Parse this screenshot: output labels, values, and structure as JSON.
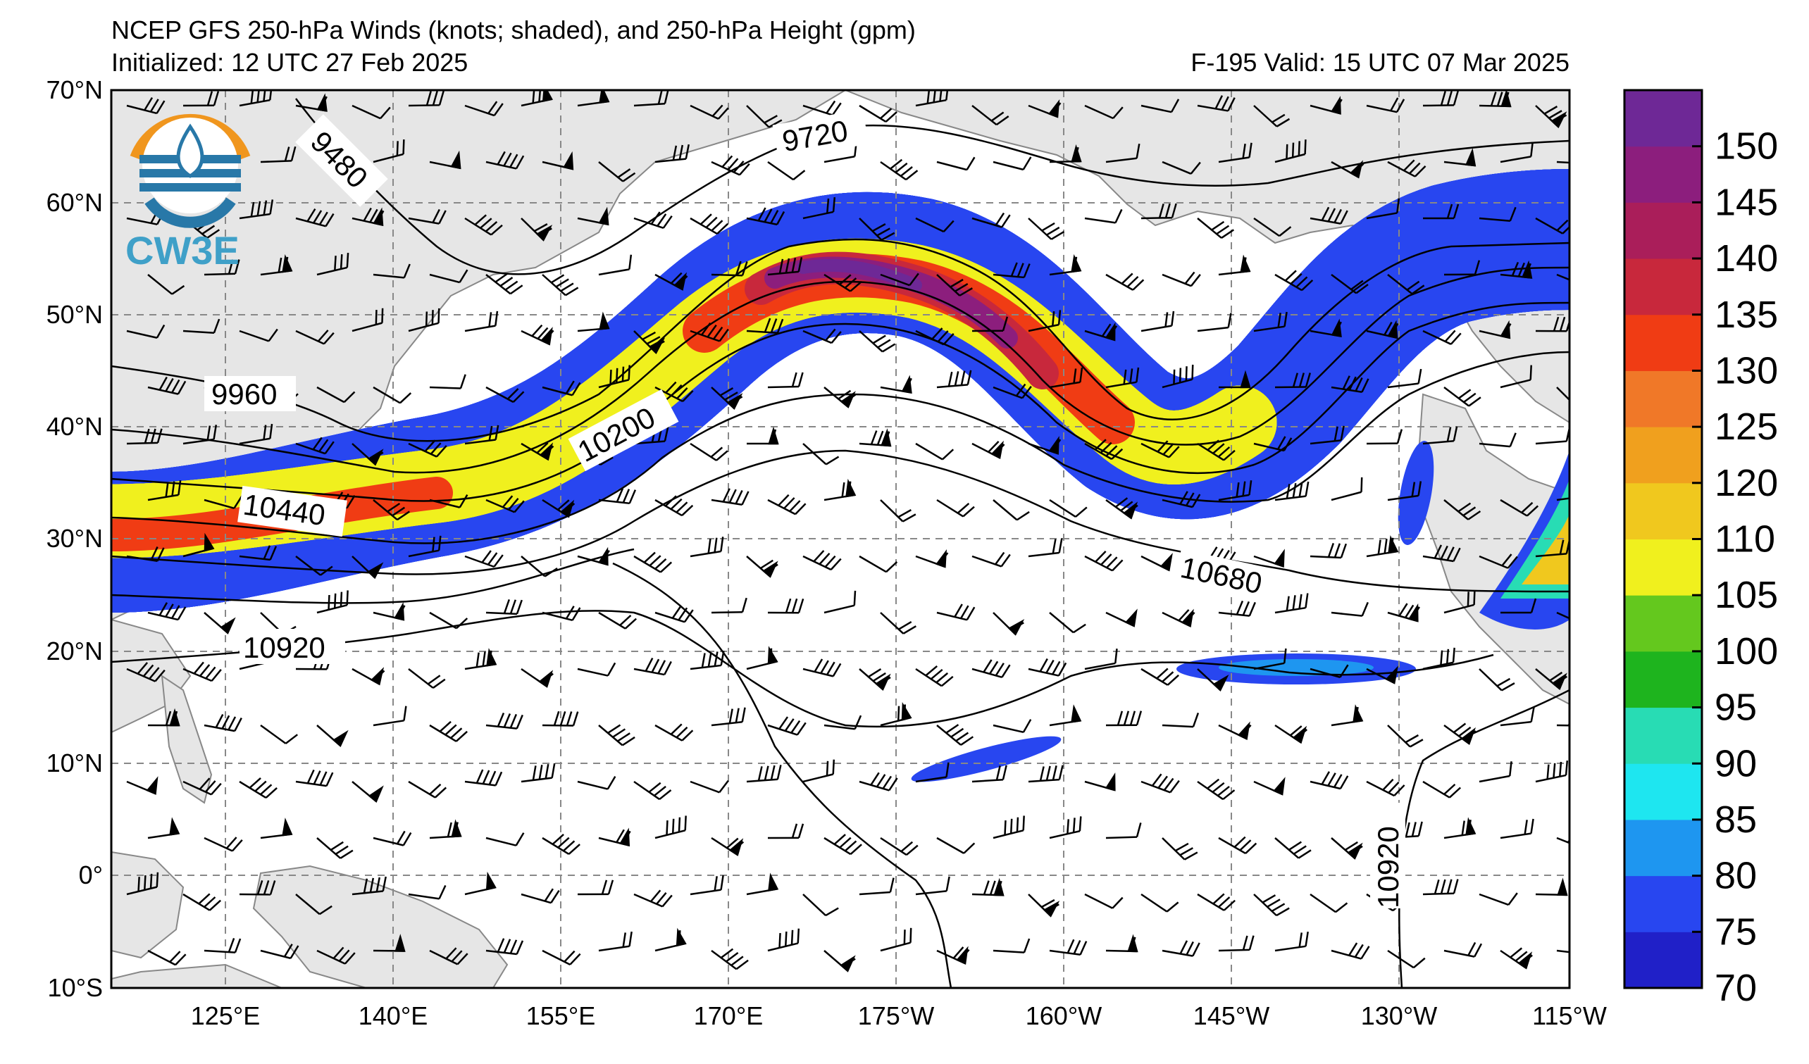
{
  "title": {
    "line1": "NCEP GFS 250-hPa Winds (knots; shaded), and 250-hPa Height (gpm)",
    "init": "Initialized: 12 UTC 27 Feb 2025",
    "valid": "F-195  Valid: 15 UTC 07 Mar 2025"
  },
  "logo": {
    "text": "CW3E"
  },
  "axes": {
    "lat_labels": [
      "70°N",
      "60°N",
      "50°N",
      "40°N",
      "30°N",
      "20°N",
      "10°N",
      "0°",
      "10°S"
    ],
    "lon_labels": [
      "125°E",
      "140°E",
      "155°E",
      "170°E",
      "175°W",
      "160°W",
      "145°W",
      "130°W",
      "115°W"
    ]
  },
  "colorbar": {
    "labels": [
      "150",
      "145",
      "140",
      "135",
      "130",
      "125",
      "120",
      "110",
      "105",
      "100",
      "95",
      "90",
      "85",
      "80",
      "75",
      "70"
    ],
    "colors": [
      "#2020c8",
      "#2846f0",
      "#1e96f0",
      "#1ee6f0",
      "#28dcb4",
      "#1eb41e",
      "#64c81e",
      "#f0f01e",
      "#f0c81e",
      "#f0a01e",
      "#f07828",
      "#f03c14",
      "#c8283c",
      "#aa1e5a",
      "#8c1e7d",
      "#6e2896"
    ]
  },
  "contours": {
    "labels": [
      "9480",
      "9720",
      "9960",
      "10200",
      "10440",
      "10680",
      "10920",
      "10920"
    ]
  },
  "colors": {
    "land": "#e6e6e6",
    "coast": "#888888",
    "grid": "#888888"
  }
}
